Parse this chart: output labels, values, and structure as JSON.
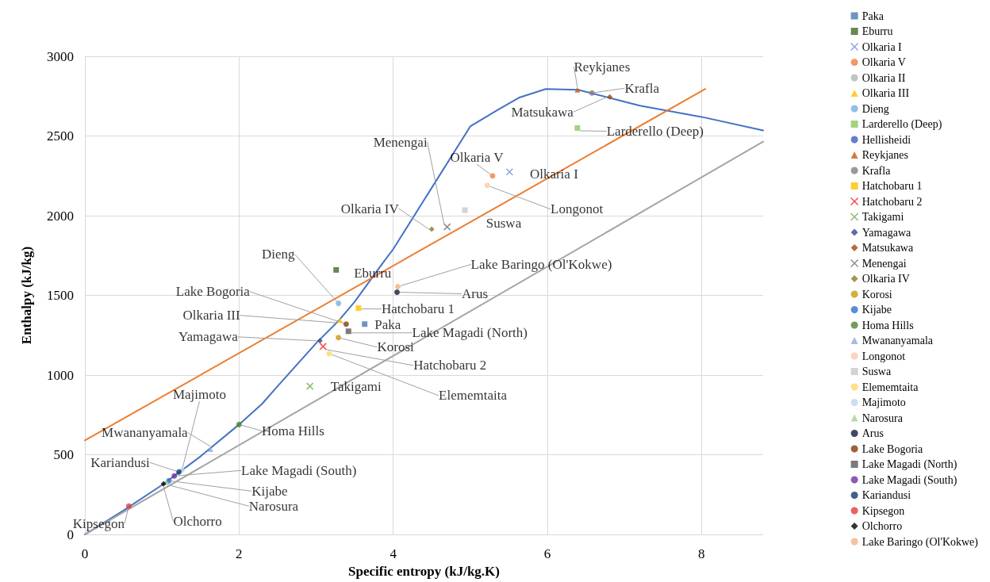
{
  "chart_data": {
    "type": "scatter",
    "xlabel": "Specific entropy (kJ/kg.K)",
    "ylabel": "Enthalpy (kJ/kg)",
    "xlim": [
      0,
      8.8
    ],
    "xticks": [
      0,
      2,
      4,
      6,
      8
    ],
    "ylim": [
      0,
      3000
    ],
    "yticks": [
      0,
      500,
      1000,
      1500,
      2000,
      2500,
      3000
    ],
    "grid": true,
    "legend": "right",
    "series": [
      {
        "name": "Paka",
        "color": "#4a7ab0",
        "marker": "square",
        "x": [
          3.63
        ],
        "values": [
          1320
        ]
      },
      {
        "name": "Eburru",
        "color": "#43682b",
        "marker": "square",
        "x": [
          3.26
        ],
        "values": [
          1660
        ]
      },
      {
        "name": "Olkaria I",
        "color": "#6f8fd8",
        "marker": "cross",
        "x": [
          5.51
        ],
        "values": [
          2275
        ]
      },
      {
        "name": "Olkaria V",
        "color": "#f08040",
        "marker": "circle",
        "x": [
          5.29
        ],
        "values": [
          2250
        ]
      },
      {
        "name": "Olkaria II",
        "color": "#b4b4b4",
        "marker": "circle",
        "x": [
          null
        ],
        "values": [
          null
        ]
      },
      {
        "name": "Olkaria III",
        "color": "#ffc000",
        "marker": "triangle",
        "x": [
          3.31
        ],
        "values": [
          1345
        ]
      },
      {
        "name": "Dieng",
        "color": "#79aee0",
        "marker": "circle",
        "x": [
          3.29
        ],
        "values": [
          1450
        ]
      },
      {
        "name": "Larderello (Deep)",
        "color": "#8ec760",
        "marker": "square",
        "x": [
          6.39
        ],
        "values": [
          2550
        ]
      },
      {
        "name": "Hellisheidi",
        "color": "#3d5cc0",
        "marker": "circle",
        "x": [
          null
        ],
        "values": [
          null
        ]
      },
      {
        "name": "Reykjanes",
        "color": "#c55a11",
        "marker": "triangle",
        "x": [
          6.39
        ],
        "values": [
          2790
        ]
      },
      {
        "name": "Krafla",
        "color": "#808080",
        "marker": "circle",
        "x": [
          6.58
        ],
        "values": [
          2770
        ]
      },
      {
        "name": "Hatchobaru 1",
        "color": "#ffc000",
        "marker": "square",
        "x": [
          3.55
        ],
        "values": [
          1420
        ]
      },
      {
        "name": "Hatchobaru 2",
        "color": "#ff2020",
        "marker": "cross",
        "x": [
          3.09
        ],
        "values": [
          1180
        ]
      },
      {
        "name": "Takigami",
        "color": "#70ad47",
        "marker": "cross",
        "x": [
          2.92
        ],
        "values": [
          930
        ]
      },
      {
        "name": "Yamagawa",
        "color": "#2f4b8a",
        "marker": "diamond",
        "x": [
          3.05
        ],
        "values": [
          1215
        ]
      },
      {
        "name": "Matsukawa",
        "color": "#9e480e",
        "marker": "diamond",
        "x": [
          6.81
        ],
        "values": [
          2745
        ]
      },
      {
        "name": "Menengai",
        "color": "#707070",
        "marker": "cross",
        "x": [
          4.7
        ],
        "values": [
          1930
        ]
      },
      {
        "name": "Olkaria IV",
        "color": "#8c7a1e",
        "marker": "diamond",
        "x": [
          4.5
        ],
        "values": [
          1915
        ]
      },
      {
        "name": "Korosi",
        "color": "#c89a10",
        "marker": "circle",
        "x": [
          3.29
        ],
        "values": [
          1235
        ]
      },
      {
        "name": "Kijabe",
        "color": "#2e70d0",
        "marker": "circle",
        "x": [
          1.09
        ],
        "values": [
          337
        ]
      },
      {
        "name": "Homa Hills",
        "color": "#548235",
        "marker": "circle",
        "x": [
          2.0
        ],
        "values": [
          690
        ]
      },
      {
        "name": "Mwananyamala",
        "color": "#8faadc",
        "marker": "triangle",
        "x": [
          1.63
        ],
        "values": [
          535
        ]
      },
      {
        "name": "Longonot",
        "color": "#f8cbad",
        "marker": "circle",
        "x": [
          5.22
        ],
        "values": [
          2190
        ]
      },
      {
        "name": "Suswa",
        "color": "#c8c8c8",
        "marker": "square",
        "x": [
          4.93
        ],
        "values": [
          2035
        ]
      },
      {
        "name": "Elememtaita",
        "color": "#ffd966",
        "marker": "circle",
        "x": [
          3.17
        ],
        "values": [
          1135
        ]
      },
      {
        "name": "Majimoto",
        "color": "#bdd7ee",
        "marker": "circle",
        "x": [
          1.26
        ],
        "values": [
          405
        ]
      },
      {
        "name": "Narosura",
        "color": "#a9d18e",
        "marker": "triangle",
        "x": [
          1.06
        ],
        "values": [
          327
        ]
      },
      {
        "name": "Arus",
        "color": "#141e3c",
        "marker": "circle",
        "x": [
          4.05
        ],
        "values": [
          1520
        ]
      },
      {
        "name": "Lake Bogoria",
        "color": "#843c0c",
        "marker": "circle",
        "x": [
          3.39
        ],
        "values": [
          1320
        ]
      },
      {
        "name": "Lake Magadi (North)",
        "color": "#595959",
        "marker": "square",
        "x": [
          3.42
        ],
        "values": [
          1275
        ]
      },
      {
        "name": "Lake Magadi (South)",
        "color": "#7030a0",
        "marker": "circle",
        "x": [
          1.16
        ],
        "values": [
          367
        ]
      },
      {
        "name": "Kariandusi",
        "color": "#0f3d66",
        "marker": "circle",
        "x": [
          1.22
        ],
        "values": [
          392
        ]
      },
      {
        "name": "Kipsegon",
        "color": "#e03c3c",
        "marker": "circle",
        "x": [
          0.57
        ],
        "values": [
          178
        ]
      },
      {
        "name": "Olchorro",
        "color": "#000000",
        "marker": "diamond",
        "x": [
          1.02
        ],
        "values": [
          317
        ]
      },
      {
        "name": "Lake Baringo (Ol'Kokwe)",
        "color": "#f4b183",
        "marker": "circle",
        "x": [
          4.06
        ],
        "values": [
          1555
        ]
      },
      {
        "type": "line",
        "color": "#4472c4",
        "marker": "none",
        "x": [
          0,
          0.5,
          1,
          1.5,
          2,
          2.3,
          2.5,
          3,
          3.3,
          3.5,
          3.83,
          4,
          4.5,
          5,
          5.36,
          5.63,
          5.98,
          6.4,
          6.8,
          7.2,
          8,
          8.8
        ],
        "values": [
          0,
          150,
          310,
          490,
          690,
          820,
          930,
          1200,
          1345,
          1460,
          1680,
          1790,
          2175,
          2560,
          2665,
          2740,
          2795,
          2790,
          2740,
          2690,
          2620,
          2535
        ]
      },
      {
        "type": "line",
        "color": "#ed7d31",
        "marker": "none",
        "x": [
          0,
          8.05
        ],
        "values": [
          590,
          2795
        ]
      },
      {
        "type": "line",
        "color": "#a5a5a5",
        "marker": "none",
        "x": [
          0,
          8.8
        ],
        "values": [
          0,
          2465
        ]
      }
    ]
  }
}
